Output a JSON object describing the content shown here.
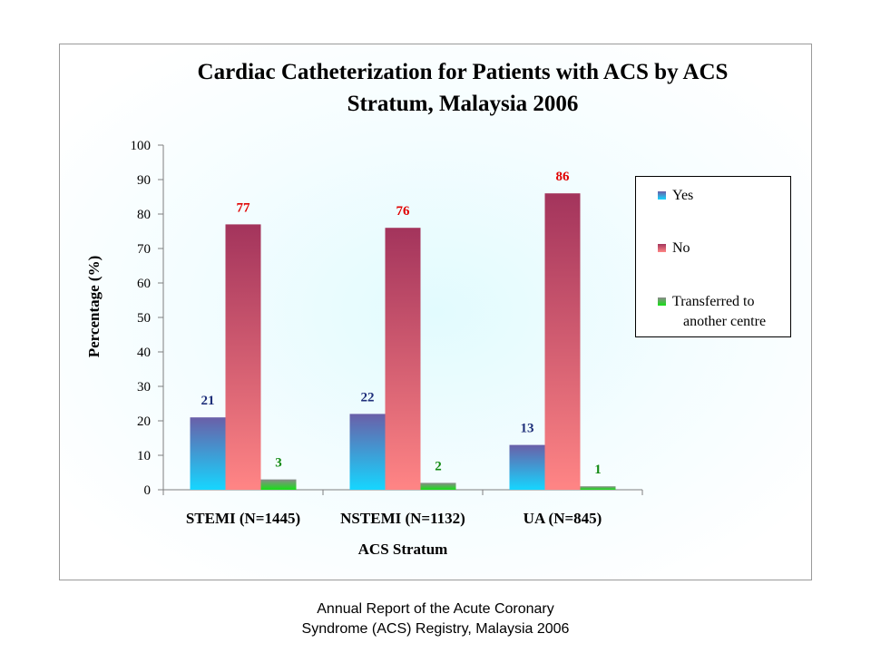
{
  "chart_data": {
    "type": "bar",
    "title": "Cardiac Catheterization for Patients with ACS by ACS Stratum, Malaysia 2006",
    "title_lines": [
      "Cardiac Catheterization for Patients with ACS by ACS",
      "Stratum, Malaysia 2006"
    ],
    "xlabel": "ACS Stratum",
    "ylabel": "Percentage (%)",
    "ylim": [
      0,
      100
    ],
    "yticks": [
      "0",
      "10",
      "20",
      "30",
      "40",
      "50",
      "60",
      "70",
      "80",
      "90",
      "100"
    ],
    "categories": [
      "STEMI (N=1445)",
      "NSTEMI (N=1132)",
      "UA (N=845)"
    ],
    "series": [
      {
        "name": "Yes",
        "values": [
          21,
          22,
          13
        ],
        "color": "#5a72b8",
        "label_color": "#1f2f7a"
      },
      {
        "name": "No",
        "values": [
          77,
          76,
          86
        ],
        "color": "#d04a6a",
        "label_color": "#e00000"
      },
      {
        "name": "Transferred to another centre",
        "values": [
          3,
          2,
          1
        ],
        "color": "#3cc63c",
        "label_color": "#138a13"
      }
    ],
    "data_labels": [
      [
        "21",
        "22",
        "13"
      ],
      [
        "77",
        "76",
        "86"
      ],
      [
        "3",
        "2",
        "1"
      ]
    ],
    "legend_lines": [
      [
        "Yes"
      ],
      [
        "No"
      ],
      [
        "Transferred to",
        "another centre"
      ]
    ],
    "legend_position": "right",
    "grid": false
  },
  "caption": {
    "line1": "Annual Report of the Acute Coronary",
    "line2": "Syndrome (ACS) Registry, Malaysia 2006"
  }
}
